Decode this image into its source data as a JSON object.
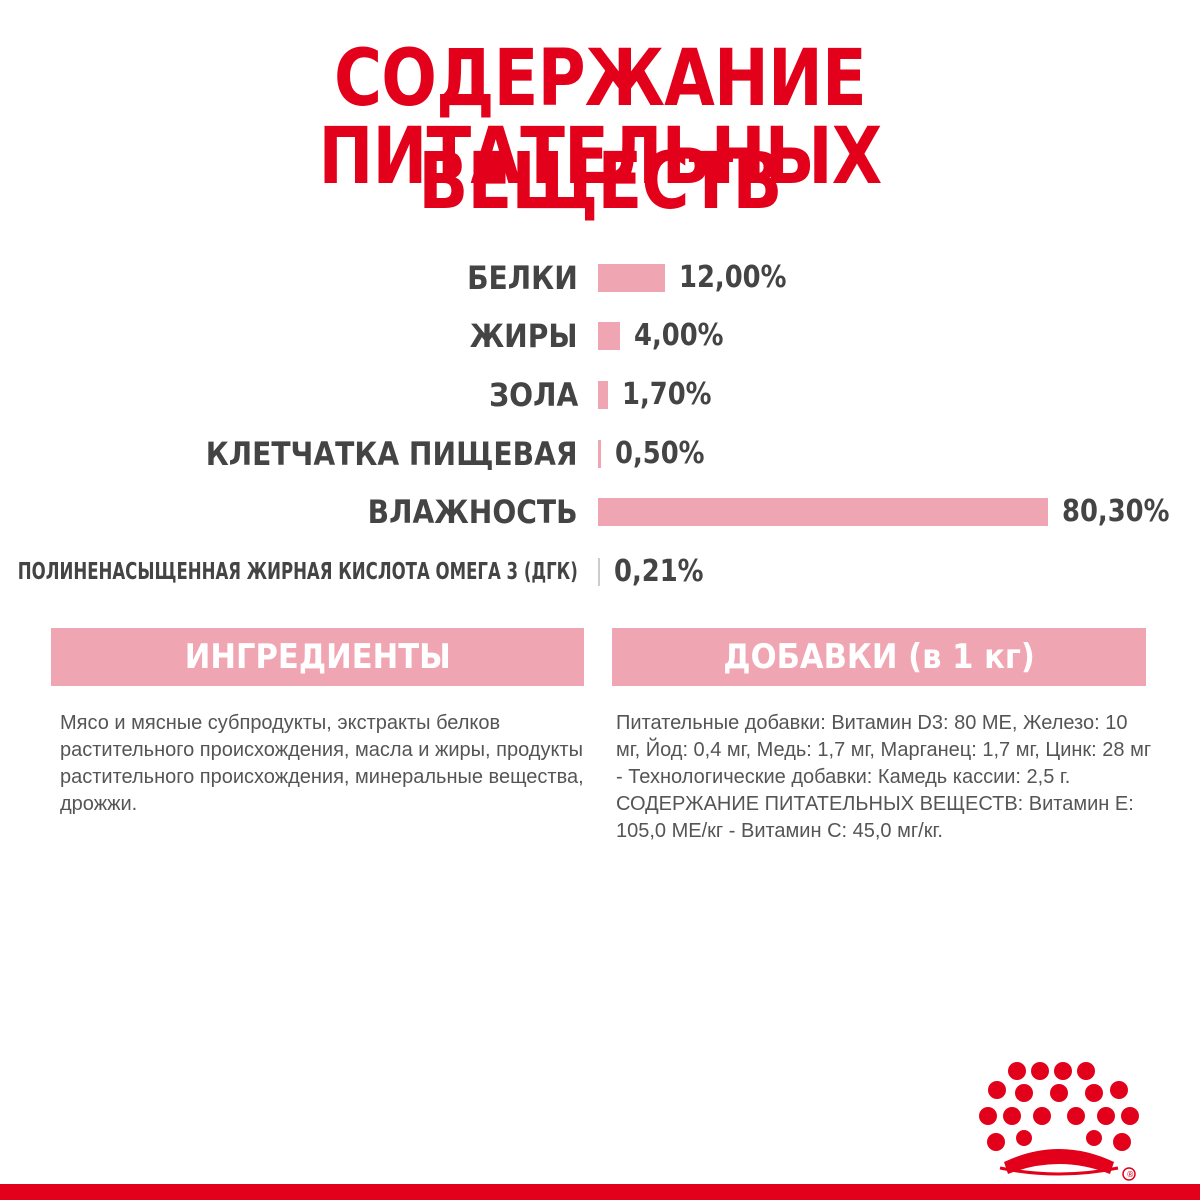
{
  "title": {
    "line1": "СОДЕРЖАНИЕ ПИТАТЕЛЬНЫХ",
    "line2": "ВЕЩЕСТВ"
  },
  "chart_data": {
    "type": "bar",
    "orientation": "horizontal",
    "categories": [
      "БЕЛКИ",
      "ЖИРЫ",
      "ЗОЛА",
      "КЛЕТЧАТКА ПИЩЕВАЯ",
      "ВЛАЖНОСТЬ",
      "ПОЛИНЕНАСЫЩЕННАЯ ЖИРНАЯ КИСЛОТА ОМЕГА 3 (ДГК)"
    ],
    "values": [
      12.0,
      4.0,
      1.7,
      0.5,
      80.3,
      0.21
    ],
    "value_labels": [
      "12,00%",
      "4,00%",
      "1,70%",
      "0,50%",
      "80,30%",
      "0,21%"
    ],
    "unit": "%",
    "bar_color": "#f0a5b2",
    "xlim": [
      0,
      100
    ]
  },
  "ingredients": {
    "header": "ИНГРЕДИЕНТЫ",
    "text": "Мясо и мясные субпродукты, экстракты белков растительного происхождения, масла и жиры, продукты растительного происхождения, минеральные вещества, дрожжи."
  },
  "additives": {
    "header": "ДОБАВКИ (в 1 кг)",
    "text": "Питательные добавки: Витамин D3: 80 МЕ, Железо: 10 мг, Йод: 0,4 мг, Медь: 1,7 мг, Марганец: 1,7 мг, Цинк: 28 мг - Технологические добавки: Камедь кассии: 2,5 г. СОДЕРЖАНИЕ ПИТАТЕЛЬНЫХ ВЕЩЕСТВ: Витамин Е: 105,0 МЕ/кг - Витамин С: 45,0 мг/кг."
  },
  "colors": {
    "brand_red": "#e3001b",
    "accent_pink": "#f0a5b2",
    "text_gray": "#444444"
  },
  "logo": {
    "icon": "crown-icon",
    "mark": "®"
  }
}
